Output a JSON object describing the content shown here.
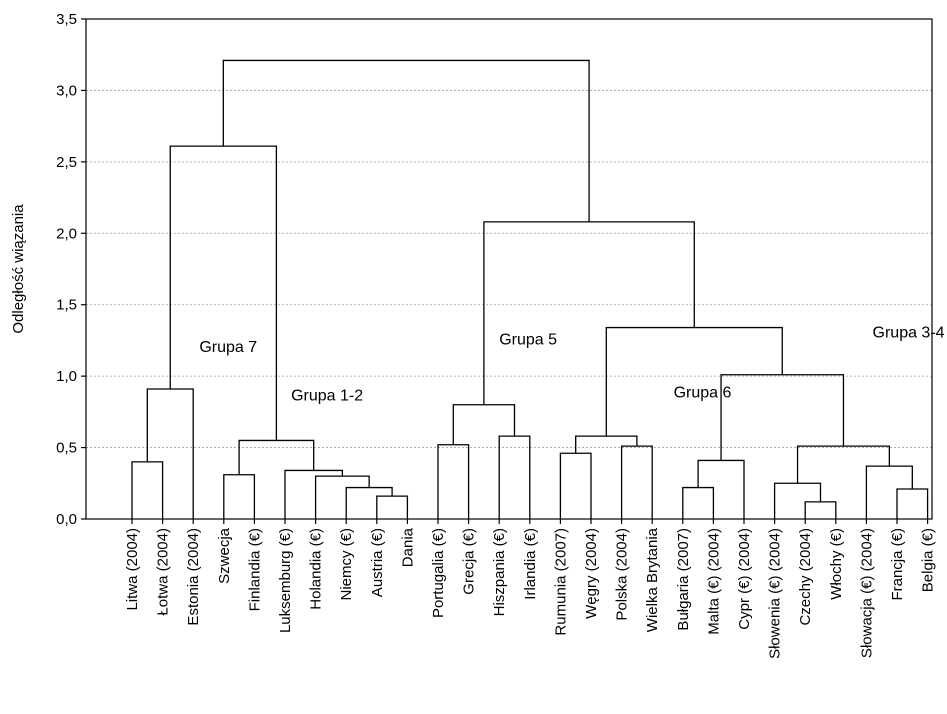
{
  "chart_data": {
    "type": "dendrogram",
    "ylabel": "Odległość wiązania",
    "ylim": [
      0,
      3.5
    ],
    "yticks": [
      "0,0",
      "0,5",
      "1,0",
      "1,5",
      "2,0",
      "2,5",
      "3,0",
      "3,5"
    ],
    "grid": "horizontal dashed",
    "leaves": [
      "Litwa (2004)",
      "Łotwa (2004)",
      "Estonia (2004)",
      "Szwecja",
      "Finlandia (€)",
      "Luksemburg (€)",
      "Holandia (€)",
      "Niemcy (€)",
      "Austria (€)",
      "Dania",
      "Portugalia (€)",
      "Grecja (€)",
      "Hiszpania (€)",
      "Irlandia (€)",
      "Rumunia (2007)",
      "Węgry (2004)",
      "Polska (2004)",
      "Wielka Brytania",
      "Bułgaria (2007)",
      "Malta (€) (2004)",
      "Cypr (€) (2004)",
      "Słowenia (€) (2004)",
      "Czechy (2004)",
      "Włochy (€)",
      "Słowacja (€) (2004)",
      "Francja (€)",
      "Belgia (€)"
    ],
    "merges": [
      [
        0,
        1,
        0.4
      ],
      [
        27,
        2,
        0.91
      ],
      [
        8,
        9,
        0.16
      ],
      [
        7,
        29,
        0.22
      ],
      [
        6,
        30,
        0.3
      ],
      [
        5,
        31,
        0.34
      ],
      [
        3,
        4,
        0.31
      ],
      [
        33,
        32,
        0.55
      ],
      [
        28,
        34,
        2.61
      ],
      [
        10,
        11,
        0.52
      ],
      [
        12,
        13,
        0.58
      ],
      [
        36,
        37,
        0.8
      ],
      [
        14,
        15,
        0.46
      ],
      [
        16,
        17,
        0.51
      ],
      [
        39,
        40,
        0.58
      ],
      [
        18,
        19,
        0.22
      ],
      [
        42,
        20,
        0.41
      ],
      [
        22,
        23,
        0.12
      ],
      [
        21,
        44,
        0.25
      ],
      [
        25,
        26,
        0.21
      ],
      [
        24,
        46,
        0.37
      ],
      [
        45,
        47,
        0.51
      ],
      [
        43,
        48,
        1.01
      ],
      [
        41,
        49,
        1.34
      ],
      [
        38,
        50,
        2.08
      ],
      [
        35,
        51,
        3.21
      ]
    ],
    "annotations": [
      {
        "text": "Grupa 7",
        "x": 2.2,
        "y": 1.17
      },
      {
        "text": "Grupa 1-2",
        "x": 5.2,
        "y": 0.83
      },
      {
        "text": "Grupa 5",
        "x": 12.0,
        "y": 1.22
      },
      {
        "text": "Grupa 6",
        "x": 17.7,
        "y": 0.85
      },
      {
        "text": "Grupa 3-4",
        "x": 24.2,
        "y": 1.27
      }
    ]
  }
}
